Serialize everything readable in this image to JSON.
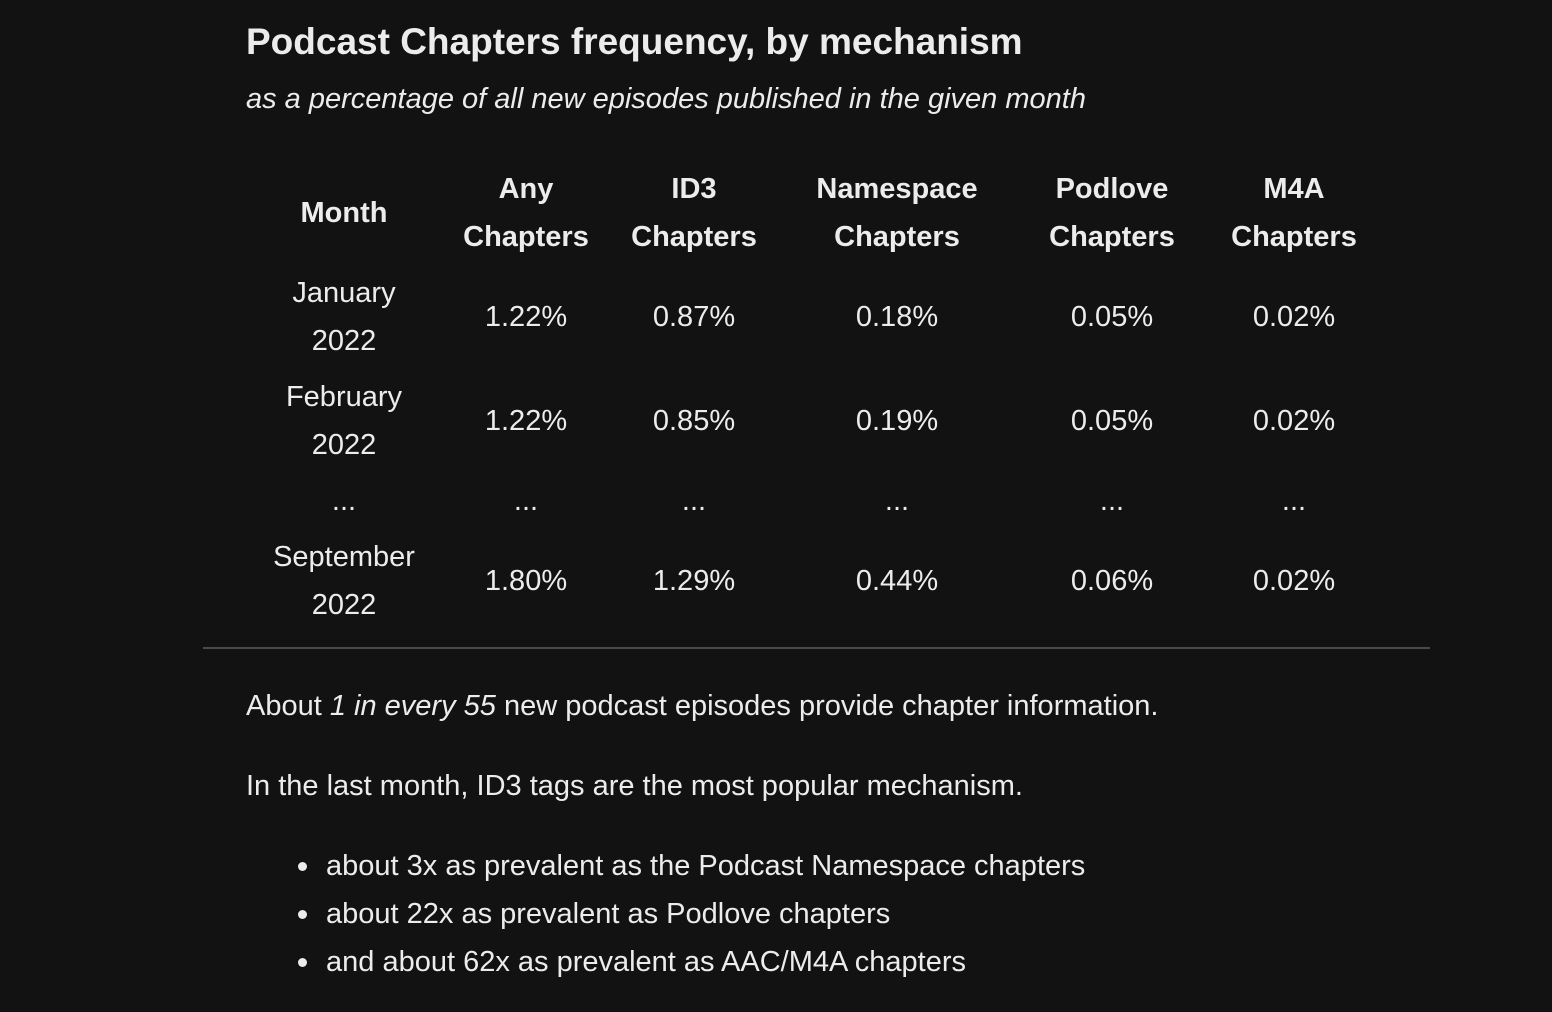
{
  "title": "Podcast Chapters frequency, by mechanism",
  "subtitle": "as a percentage of all new episodes published in the given month",
  "table": {
    "headers": [
      [
        "Month"
      ],
      [
        "Any",
        "Chapters"
      ],
      [
        "ID3",
        "Chapters"
      ],
      [
        "Namespace",
        "Chapters"
      ],
      [
        "Podlove",
        "Chapters"
      ],
      [
        "M4A",
        "Chapters"
      ]
    ],
    "rows": [
      {
        "month": [
          "January",
          "2022"
        ],
        "values": [
          "1.22%",
          "0.87%",
          "0.18%",
          "0.05%",
          "0.02%"
        ]
      },
      {
        "month": [
          "February",
          "2022"
        ],
        "values": [
          "1.22%",
          "0.85%",
          "0.19%",
          "0.05%",
          "0.02%"
        ]
      },
      {
        "month": [
          "..."
        ],
        "values": [
          "...",
          "...",
          "...",
          "...",
          "..."
        ]
      },
      {
        "month": [
          "September",
          "2022"
        ],
        "values": [
          "1.80%",
          "1.29%",
          "0.44%",
          "0.06%",
          "0.02%"
        ]
      }
    ]
  },
  "summary": {
    "p1_before": "About ",
    "p1_emphasis": "1 in every 55",
    "p1_after": " new podcast episodes provide chapter information.",
    "p2": "In the last month, ID3 tags are the most popular mechanism.",
    "bullets": [
      "about 3x as prevalent as the Podcast Namespace chapters",
      "about 22x as prevalent as Podlove chapters",
      "and about 62x as prevalent as AAC/M4A chapters"
    ]
  }
}
